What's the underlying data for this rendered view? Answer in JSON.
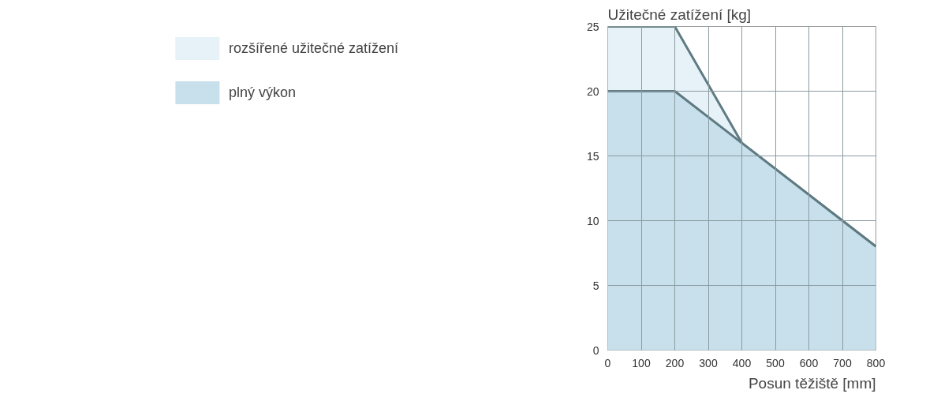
{
  "chart_data": {
    "type": "area",
    "xlabel": "Posun těžiště [mm]",
    "ylabel": "Užitečné zatížení [kg]",
    "x": [
      0,
      200,
      400,
      700,
      800
    ],
    "series": [
      {
        "name": "rozšířené užitečné zatížení",
        "color": "#e6f1f8",
        "values": [
          25,
          25,
          16,
          10,
          8
        ]
      },
      {
        "name": "plný výkon",
        "color": "#c8e0ec",
        "values": [
          20,
          20,
          16,
          10,
          8
        ]
      }
    ],
    "xlim": [
      0,
      800
    ],
    "ylim": [
      0,
      25
    ],
    "xticks": [
      0,
      100,
      200,
      300,
      400,
      500,
      600,
      700,
      800
    ],
    "yticks": [
      0,
      5,
      10,
      15,
      20,
      25
    ],
    "grid": true,
    "legend": "left"
  }
}
